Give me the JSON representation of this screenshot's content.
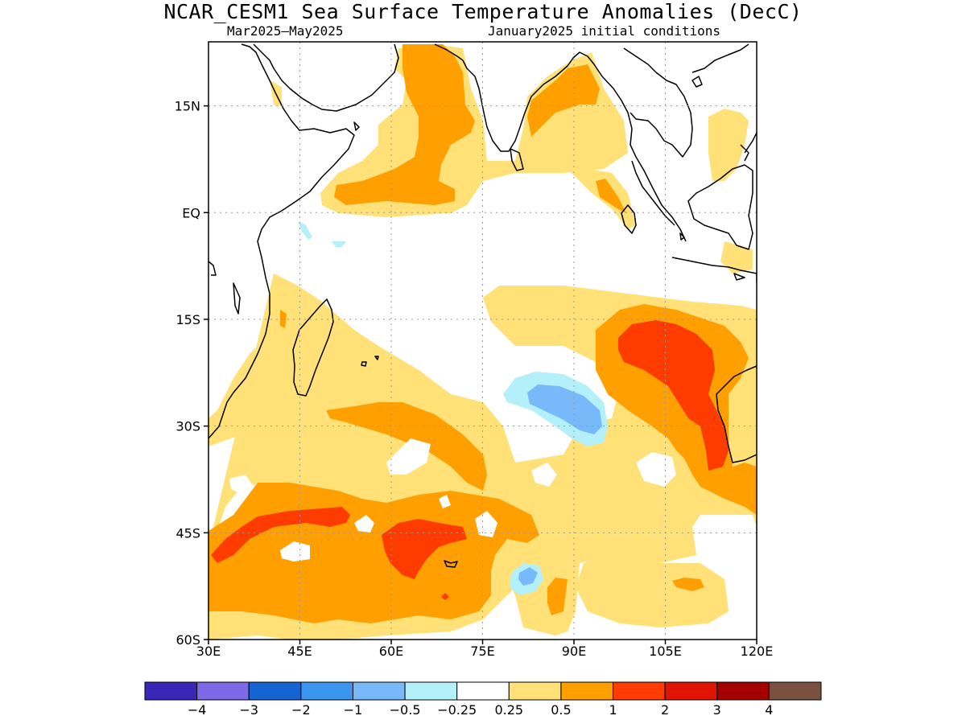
{
  "title": "NCAR_CESM1 Sea Surface Temperature Anomalies (DecC)",
  "subtitle_left": "Mar2025–May2025",
  "subtitle_right": "January2025 initial conditions",
  "map": {
    "lon_range": [
      30,
      120
    ],
    "lat_range": [
      -60,
      24
    ],
    "lat_ticks": [
      {
        "value": 15,
        "label": "15N"
      },
      {
        "value": 0,
        "label": "EQ"
      },
      {
        "value": -15,
        "label": "15S"
      },
      {
        "value": -30,
        "label": "30S"
      },
      {
        "value": -45,
        "label": "45S"
      },
      {
        "value": -60,
        "label": "60S"
      }
    ],
    "lon_ticks": [
      {
        "value": 30,
        "label": "30E"
      },
      {
        "value": 45,
        "label": "45E"
      },
      {
        "value": 60,
        "label": "60E"
      },
      {
        "value": 75,
        "label": "75E"
      },
      {
        "value": 90,
        "label": "90E"
      },
      {
        "value": 105,
        "label": "105E"
      },
      {
        "value": 120,
        "label": "120E"
      }
    ],
    "grid": true,
    "colors": {
      "c_m05_m025": "#b4f0fa",
      "c_m1_m05": "#78b9fa",
      "c_025_05": "#ffe178",
      "c_05_1": "#ffa000",
      "c_1_2": "#ff3c00",
      "coast": "#000000"
    }
  },
  "legend": {
    "colors": [
      "#3a27b8",
      "#7d68e6",
      "#1464d2",
      "#3c96f0",
      "#78b9fa",
      "#b4f0fa",
      "#ffffff",
      "#ffe178",
      "#ffa000",
      "#ff3c00",
      "#e11400",
      "#a50000",
      "#7a5040"
    ],
    "labels": [
      "−4",
      "−3",
      "−2",
      "−1",
      "−0.5",
      "−0.25",
      "0.25",
      "0.5",
      "1",
      "2",
      "3",
      "4"
    ]
  }
}
